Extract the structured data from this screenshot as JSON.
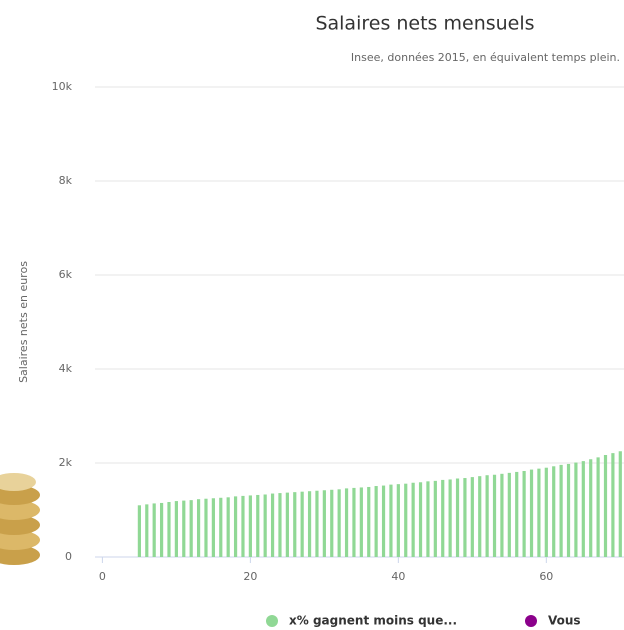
{
  "chart_data": {
    "type": "bar",
    "title": "Salaires nets mensuels",
    "subtitle": "Insee, données 2015, en équivalent temps plein.",
    "y_label": "Salaires nets en euros",
    "series": [
      {
        "name": "x% gagnent moins que...",
        "color": "#90d895",
        "x": [
          5,
          6,
          7,
          8,
          9,
          10,
          11,
          12,
          13,
          14,
          15,
          16,
          17,
          18,
          19,
          20,
          21,
          22,
          23,
          24,
          25,
          26,
          27,
          28,
          29,
          30,
          31,
          32,
          33,
          34,
          35,
          36,
          37,
          38,
          39,
          40,
          41,
          42,
          43,
          44,
          45,
          46,
          47,
          48,
          49,
          50,
          51,
          52,
          53,
          54,
          55,
          56,
          57,
          58,
          59,
          60,
          61,
          62,
          63,
          64,
          65,
          66,
          67,
          68,
          69,
          70
        ],
        "values": [
          1100,
          1120,
          1140,
          1150,
          1170,
          1190,
          1200,
          1210,
          1230,
          1240,
          1250,
          1260,
          1270,
          1290,
          1300,
          1310,
          1320,
          1330,
          1350,
          1360,
          1370,
          1380,
          1390,
          1400,
          1410,
          1420,
          1430,
          1440,
          1460,
          1470,
          1480,
          1490,
          1510,
          1520,
          1540,
          1550,
          1560,
          1580,
          1590,
          1610,
          1620,
          1640,
          1650,
          1670,
          1680,
          1700,
          1720,
          1740,
          1750,
          1770,
          1790,
          1810,
          1830,
          1860,
          1880,
          1900,
          1930,
          1960,
          1980,
          2010,
          2040,
          2080,
          2120,
          2170,
          2210,
          2250
        ]
      },
      {
        "name": "Vous",
        "color": "#8b008b",
        "x": [],
        "values": []
      }
    ],
    "xlim": [
      -1,
      70.5
    ],
    "ylim": [
      0,
      10000
    ],
    "xticks": [
      0,
      20,
      40,
      60
    ],
    "yticks": [
      0,
      {
        "value": 2000,
        "label": "2k"
      },
      {
        "value": 4000,
        "label": "4k"
      },
      {
        "value": 6000,
        "label": "6k"
      },
      {
        "value": 8000,
        "label": "8k"
      },
      {
        "value": 10000,
        "label": "10k"
      }
    ],
    "grid": true
  }
}
